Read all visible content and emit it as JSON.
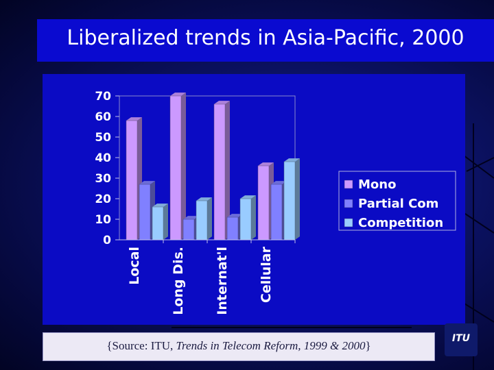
{
  "title": "Liberalized trends in Asia-Pacific, 2000",
  "source": {
    "prefix": "{Source: ITU, ",
    "italic": "Trends in Telecom Reform, 1999 & 2000",
    "suffix": "}"
  },
  "logo_text": "ITU",
  "colors": {
    "slide_background": "#0b1160",
    "title_bar": "#0a0ad0",
    "chart_panel": "#0b0bc4",
    "mono": "#cc99ff",
    "partial_com": "#8080ff",
    "competition": "#99ccff"
  },
  "chart_data": {
    "type": "bar",
    "categories": [
      "Local",
      "Long Dis.",
      "Internat'l",
      "Cellular"
    ],
    "series": [
      {
        "name": "Mono",
        "values": [
          58,
          70,
          66,
          36
        ],
        "color": "#cc99ff"
      },
      {
        "name": "Partial Com",
        "values": [
          27,
          10,
          11,
          27
        ],
        "color": "#8080ff"
      },
      {
        "name": "Competition",
        "values": [
          16,
          19,
          20,
          38
        ],
        "color": "#99ccff"
      }
    ],
    "ylim": [
      0,
      70
    ],
    "yticks": [
      "0",
      "10",
      "20",
      "30",
      "40",
      "50",
      "60",
      "70"
    ],
    "style": "3d",
    "legend_position": "right",
    "grid": false
  }
}
